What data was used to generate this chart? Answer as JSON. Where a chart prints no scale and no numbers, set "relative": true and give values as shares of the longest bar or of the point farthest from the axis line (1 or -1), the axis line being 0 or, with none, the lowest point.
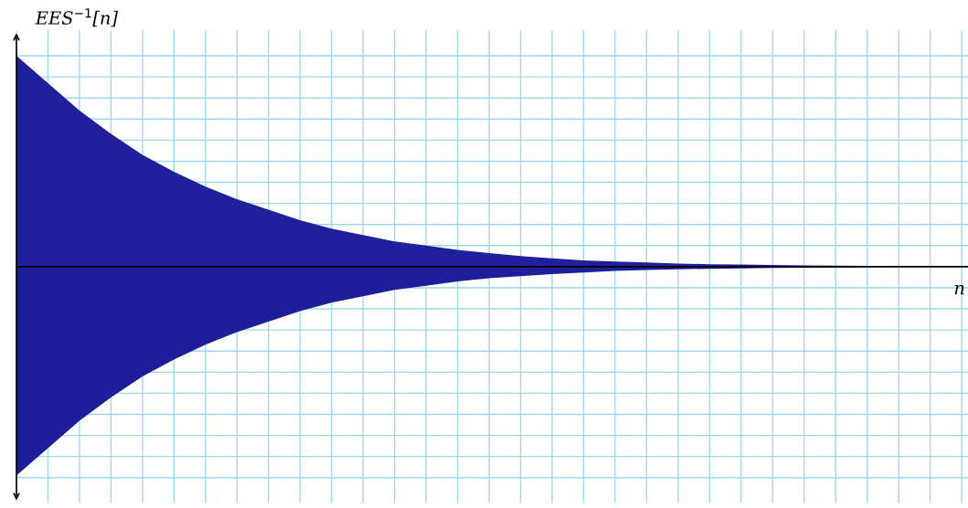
{
  "chart_data": {
    "type": "area",
    "relative": true,
    "xlabel": "n",
    "ylabel": "EES$^{−1}$[n]",
    "categories": [
      null,
      null,
      null,
      null,
      null,
      null,
      null,
      null,
      null,
      null,
      null,
      null,
      null,
      null,
      null,
      null,
      null,
      null,
      null,
      null,
      null,
      null,
      null,
      null,
      null,
      null,
      null,
      null,
      null,
      null,
      null
    ],
    "series": [
      {
        "color": "#20209c",
        "values": [
          1.0,
          0.87,
          0.74,
          0.63,
          0.53,
          0.45,
          0.38,
          0.32,
          0.27,
          0.22,
          0.18,
          0.15,
          0.12,
          0.1,
          0.08,
          0.065,
          0.05,
          0.04,
          0.03,
          0.025,
          0.02,
          0.015,
          0.012,
          0.01,
          0.008,
          0.006,
          0.005,
          0.004,
          0,
          0,
          0
        ]
      },
      {
        "color": "#1e1e9a",
        "values": [
          -0.99,
          -0.86,
          -0.73,
          -0.62,
          -0.52,
          -0.44,
          -0.37,
          -0.31,
          -0.26,
          -0.21,
          -0.17,
          -0.14,
          -0.11,
          -0.09,
          -0.07,
          -0.055,
          -0.045,
          -0.035,
          -0.027,
          -0.02,
          -0.016,
          -0.012,
          -0.01,
          -0.008,
          -0.006,
          -0.005,
          -0.004,
          -0.003,
          0,
          0,
          0
        ]
      }
    ],
    "grid": true
  }
}
